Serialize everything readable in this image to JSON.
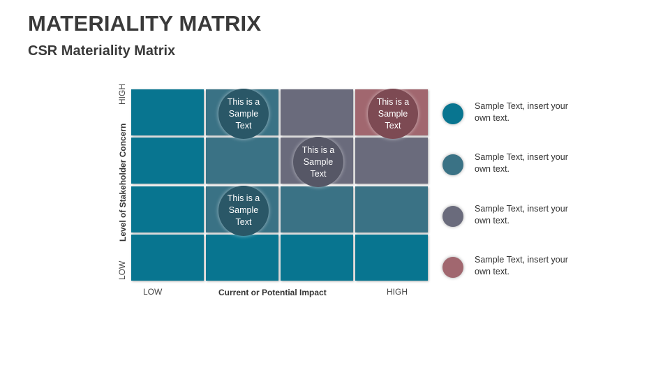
{
  "header": {
    "title": "MATERIALITY MATRIX",
    "subtitle": "CSR Materiality Matrix"
  },
  "colors": {
    "teal": "#087590",
    "steel": "#3a7285",
    "slate": "#6a6b7c",
    "rose": "#a1676f",
    "bubble_teal": "#2a5767",
    "bubble_slate": "#565766",
    "bubble_rose": "#7d4a53"
  },
  "axes": {
    "y_high": "HIGH",
    "y_low": "LOW",
    "y_label": "Level of Stakeholder Concern",
    "x_low": "LOW",
    "x_high": "HIGH",
    "x_label": "Current or Potential Impact"
  },
  "grid": {
    "rows": [
      [
        "teal",
        "steel",
        "slate",
        "rose"
      ],
      [
        "teal",
        "steel",
        "slate",
        "slate"
      ],
      [
        "teal",
        "steel",
        "steel",
        "steel"
      ],
      [
        "teal",
        "teal",
        "teal",
        "teal"
      ]
    ]
  },
  "bubbles": [
    {
      "row": 0,
      "col": 1,
      "text": "This is a Sample Text",
      "color": "bubble_teal"
    },
    {
      "row": 0,
      "col": 3,
      "text": "This is a Sample Text",
      "color": "bubble_rose"
    },
    {
      "row": 1,
      "col": 2,
      "text": "This is a Sample Text",
      "color": "bubble_slate"
    },
    {
      "row": 2,
      "col": 1,
      "text": "This is a Sample Text",
      "color": "bubble_teal"
    }
  ],
  "legend": [
    {
      "color": "teal",
      "text": "Sample Text, insert your own text."
    },
    {
      "color": "steel",
      "text": "Sample Text, insert your own text."
    },
    {
      "color": "slate",
      "text": "Sample Text, insert your own text."
    },
    {
      "color": "rose",
      "text": "Sample Text, insert your own text."
    }
  ]
}
